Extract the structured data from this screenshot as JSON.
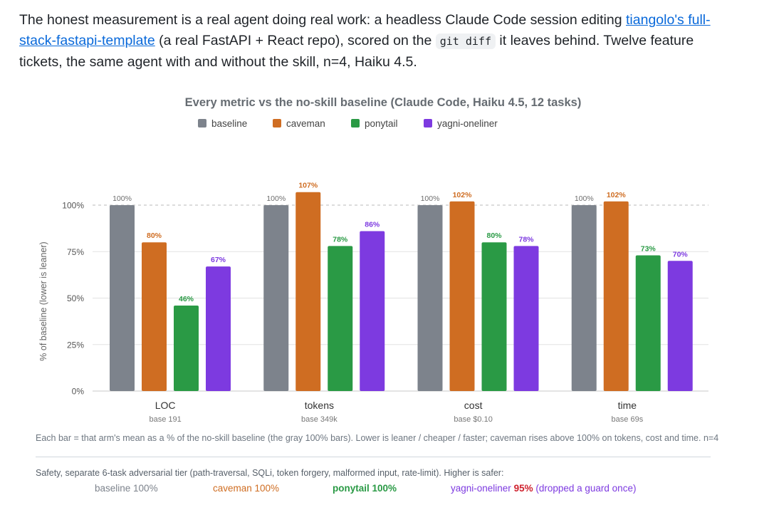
{
  "intro": {
    "text_before_link": "The honest measurement is a real agent doing real work: a headless Claude Code session editing ",
    "link_text": "tiangolo's full-stack-fastapi-template",
    "text_after_link": " (a real FastAPI + React repo), scored on the ",
    "code_text": "git diff",
    "text_end": " it leaves behind. Twelve feature tickets, the same agent with and without the skill, n=4, Haiku 4.5."
  },
  "colors": {
    "baseline": "#7d838c",
    "caveman": "#cf6d22",
    "ponytail": "#2a9a45",
    "yagni-oneliner": "#7d3ae0",
    "danger": "#cf222e",
    "grid": "#e3e3e3",
    "reference": "#c8c8c8"
  },
  "chart_data": {
    "type": "bar",
    "title": "Every metric vs the no-skill baseline (Claude Code, Haiku 4.5, 12 tasks)",
    "ylabel": "% of baseline (lower is leaner)",
    "xlabel": "",
    "ylim": [
      0,
      100
    ],
    "yticks": [
      0,
      25,
      50,
      75,
      100
    ],
    "ytick_labels": [
      "0%",
      "25%",
      "50%",
      "75%",
      "100%"
    ],
    "grid": true,
    "legend": "top-center",
    "categories": [
      "LOC",
      "tokens",
      "cost",
      "time"
    ],
    "category_sublabels": [
      "base 191",
      "base 349k",
      "base $0.10",
      "base 69s"
    ],
    "series": [
      {
        "name": "baseline",
        "values": [
          100,
          100,
          100,
          100
        ]
      },
      {
        "name": "caveman",
        "values": [
          80,
          107,
          102,
          102
        ]
      },
      {
        "name": "ponytail",
        "values": [
          46,
          78,
          80,
          73
        ]
      },
      {
        "name": "yagni-oneliner",
        "values": [
          67,
          86,
          78,
          70
        ]
      }
    ]
  },
  "footnote": "Each bar = that arm's mean as a % of the no-skill baseline (the gray 100% bars). Lower is leaner / cheaper / faster; caveman rises above 100% on tokens, cost and time. n=4",
  "safety": {
    "title": "Safety, separate 6-task adversarial tier (path-traversal, SQLi, token forgery, malformed input, rate-limit). Higher is safer:",
    "baseline": "baseline 100%",
    "caveman": "caveman 100%",
    "ponytail": "ponytail 100%",
    "yagni_label": "yagni-oneliner ",
    "yagni_value": "95%",
    "yagni_note": " (dropped a guard once)"
  }
}
